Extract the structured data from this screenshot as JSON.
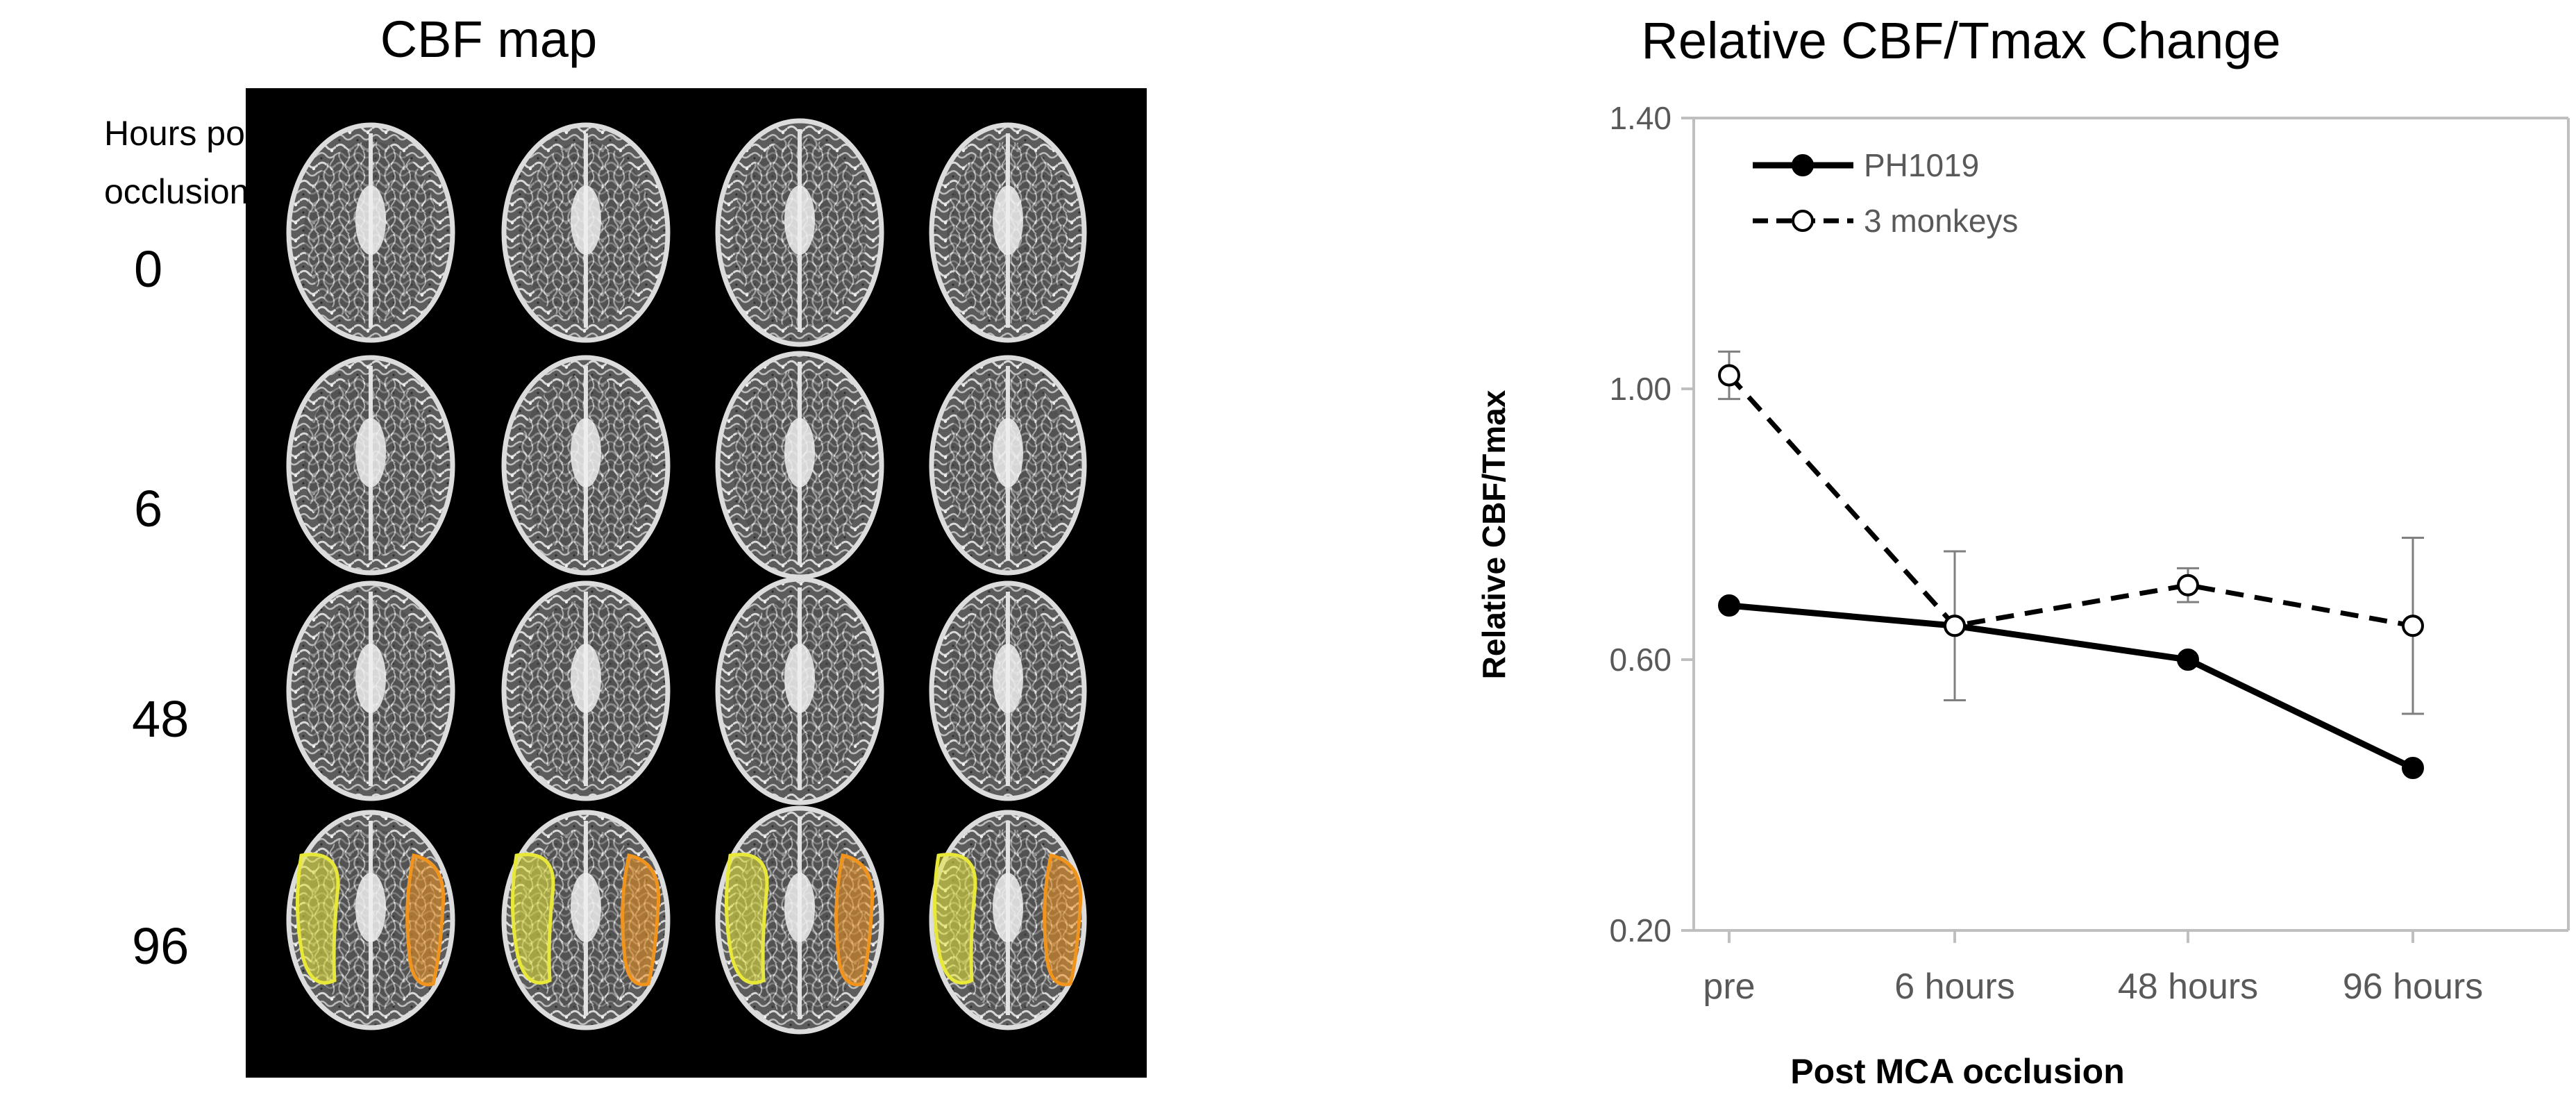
{
  "left_panel": {
    "title": "CBF map",
    "row_header_line1": "Hours post",
    "row_header_line2": "occlusion",
    "rows": [
      "0",
      "6",
      "48",
      "96"
    ],
    "roi_colors": {
      "left": "#e8e83a",
      "right": "#f0941e"
    }
  },
  "chart_data": {
    "type": "line",
    "title": "Relative CBF/Tmax Change",
    "xlabel": "Post MCA occlusion",
    "ylabel": "Relative CBF/Tmax",
    "categories": [
      "pre",
      "6 hours",
      "48 hours",
      "96 hours"
    ],
    "ylim": [
      0.2,
      1.4
    ],
    "yticks": [
      "0.20",
      "0.60",
      "1.00",
      "1.40"
    ],
    "legend_position": "top-left",
    "grid": false,
    "series": [
      {
        "name": "PH1019",
        "style": "solid",
        "marker": "filled-circle",
        "values": [
          0.68,
          0.65,
          0.6,
          0.44
        ]
      },
      {
        "name": "3 monkeys",
        "style": "dashed",
        "marker": "open-circle",
        "values": [
          1.02,
          0.65,
          0.71,
          0.65
        ],
        "error": [
          0.035,
          0.11,
          0.025,
          0.13
        ]
      }
    ]
  }
}
